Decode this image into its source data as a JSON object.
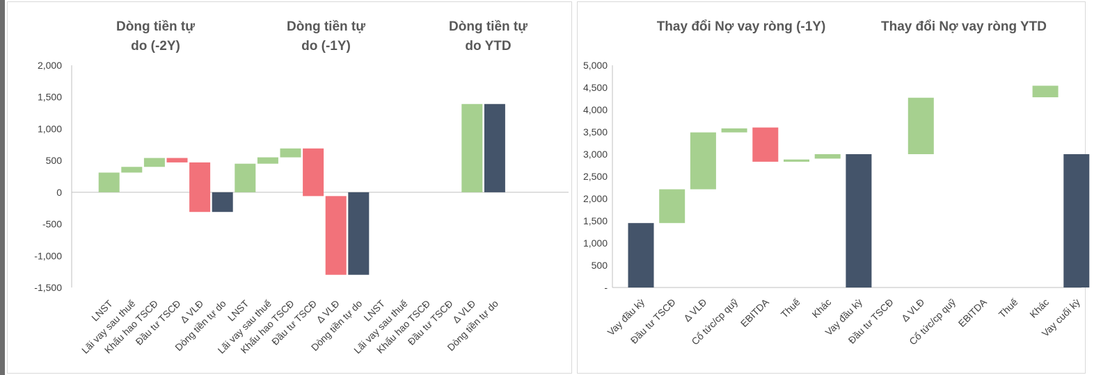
{
  "colors": {
    "increase": "#a6d08f",
    "decrease": "#f2727a",
    "total": "#44546a",
    "axis": "#bfbfbf",
    "text": "#404040",
    "title": "#595959"
  },
  "chart_data": [
    {
      "type": "bar",
      "subtype": "waterfall",
      "y_ticks": [
        "2,000",
        "1,500",
        "1,000",
        "500",
        "0",
        "-500",
        "-1,000",
        "-1,500"
      ],
      "ylim": [
        -1500,
        2000
      ],
      "grid": false,
      "groups": [
        {
          "title": "Dòng tiền tự do (-2Y)",
          "title_lines": [
            "Dòng tiền tự",
            "do (-2Y)"
          ],
          "categories": [
            "LNST",
            "Lãi vay sau thuế",
            "Khấu hao TSCĐ",
            "Đầu tư TSCĐ",
            "Δ VLĐ",
            "Dòng tiền tự do"
          ],
          "bars": [
            {
              "kind": "increase",
              "start": 0,
              "end": 310
            },
            {
              "kind": "increase",
              "start": 310,
              "end": 400
            },
            {
              "kind": "increase",
              "start": 400,
              "end": 540
            },
            {
              "kind": "decrease",
              "start": 540,
              "end": 470
            },
            {
              "kind": "decrease",
              "start": 470,
              "end": -310
            },
            {
              "kind": "total",
              "start": 0,
              "end": -310
            }
          ]
        },
        {
          "title": "Dòng tiền tự do (-1Y)",
          "title_lines": [
            "Dòng tiền tự",
            "do (-1Y)"
          ],
          "categories": [
            "LNST",
            "Lãi vay sau thuế",
            "Khấu hao TSCĐ",
            "Đầu tư TSCĐ",
            "Δ VLĐ",
            "Dòng tiền tự do"
          ],
          "bars": [
            {
              "kind": "increase",
              "start": 0,
              "end": 450
            },
            {
              "kind": "increase",
              "start": 450,
              "end": 550
            },
            {
              "kind": "increase",
              "start": 550,
              "end": 690
            },
            {
              "kind": "decrease",
              "start": 690,
              "end": -60
            },
            {
              "kind": "decrease",
              "start": -60,
              "end": -1300
            },
            {
              "kind": "total",
              "start": 0,
              "end": -1300
            }
          ]
        },
        {
          "title": "Dòng tiền tự do YTD",
          "title_lines": [
            "Dòng tiền tự",
            "do YTD"
          ],
          "categories": [
            "LNST",
            "Lãi vay sau thuế",
            "Khấu hao TSCĐ",
            "Đầu tư TSCĐ",
            "Δ VLĐ",
            "Dòng tiền tự do"
          ],
          "bars": [
            {
              "kind": "none",
              "start": 0,
              "end": 0
            },
            {
              "kind": "none",
              "start": 0,
              "end": 0
            },
            {
              "kind": "none",
              "start": 0,
              "end": 0
            },
            {
              "kind": "none",
              "start": 0,
              "end": 0
            },
            {
              "kind": "increase",
              "start": 0,
              "end": 1390
            },
            {
              "kind": "total",
              "start": 0,
              "end": 1390
            }
          ]
        }
      ]
    },
    {
      "type": "bar",
      "subtype": "waterfall",
      "y_ticks": [
        "5,000",
        "4,500",
        "4,000",
        "3,500",
        "3,000",
        "2,500",
        "2,000",
        "1,500",
        "1,000",
        "500",
        "-"
      ],
      "ylim": [
        0,
        5000
      ],
      "grid": false,
      "groups": [
        {
          "title": "Thay đổi Nợ vay ròng (-1Y)",
          "title_lines": [
            "Thay đổi Nợ vay ròng (-1Y)"
          ],
          "categories": [
            "Vay đầu kỳ",
            "Đầu tư TSCĐ",
            "Δ VLĐ",
            "Cổ tức/cp quỹ",
            "EBITDA",
            "Thuế",
            "Khác",
            "Vay đầu kỳ"
          ],
          "bars": [
            {
              "kind": "total",
              "start": 0,
              "end": 1450
            },
            {
              "kind": "increase",
              "start": 1450,
              "end": 2210
            },
            {
              "kind": "increase",
              "start": 2210,
              "end": 3490
            },
            {
              "kind": "increase",
              "start": 3490,
              "end": 3580
            },
            {
              "kind": "decrease",
              "start": 3600,
              "end": 2830
            },
            {
              "kind": "increase",
              "start": 2830,
              "end": 2880
            },
            {
              "kind": "increase",
              "start": 2900,
              "end": 3000
            },
            {
              "kind": "total",
              "start": 0,
              "end": 3000
            }
          ]
        },
        {
          "title": "Thay đổi Nợ vay ròng YTD",
          "title_lines": [
            "Thay đổi Nợ vay ròng YTD"
          ],
          "categories": [
            "Đầu tư TSCĐ",
            "Δ VLĐ",
            "Cổ tức/cp quỹ",
            "EBITDA",
            "Thuế",
            "Khác",
            "Vay cuối kỳ"
          ],
          "bars": [
            {
              "kind": "none",
              "start": 0,
              "end": 0
            },
            {
              "kind": "increase",
              "start": 3000,
              "end": 4270
            },
            {
              "kind": "none",
              "start": 0,
              "end": 0
            },
            {
              "kind": "none",
              "start": 0,
              "end": 0
            },
            {
              "kind": "none",
              "start": 0,
              "end": 0
            },
            {
              "kind": "increase",
              "start": 4280,
              "end": 4540
            },
            {
              "kind": "total",
              "start": 0,
              "end": 3000
            }
          ]
        }
      ]
    }
  ]
}
